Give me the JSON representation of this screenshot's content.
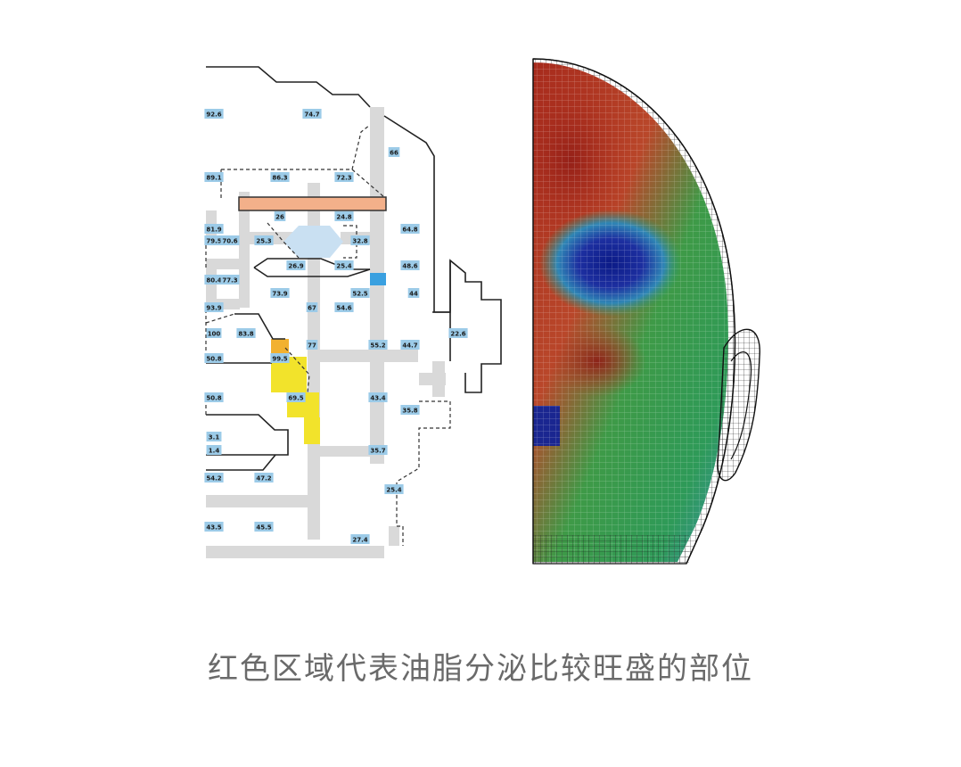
{
  "caption": "红色区域代表油脂分泌比较旺盛的部位",
  "sebum_map": {
    "values": [
      "92.6",
      "74.7",
      "66",
      "89.1",
      "86.3",
      "72.3",
      "26",
      "24.8",
      "64.8",
      "81.9",
      "79.5",
      "70.6",
      "25.3",
      "32.8",
      "26.9",
      "25.4",
      "48.6",
      "80.4",
      "77.3",
      "52.5",
      "44",
      "73.9",
      "67",
      "54.6",
      "93.9",
      "100",
      "83.8",
      "77",
      "55.2",
      "44.7",
      "22.6",
      "50.8",
      "99.5",
      "50.8",
      "69.5",
      "43.4",
      "35.8",
      "3.1",
      "1.4",
      "35.7",
      "54.2",
      "47.2",
      "25.4",
      "43.5",
      "45.5",
      "27.4"
    ]
  },
  "colors": {
    "high_oil": "#c0271e",
    "mid_oil": "#2f9a48",
    "low_oil": "#16258f",
    "highlight_orange": "#f3b08a",
    "highlight_yellow": "#f2e32b",
    "value_box": "#9ccbe8"
  }
}
